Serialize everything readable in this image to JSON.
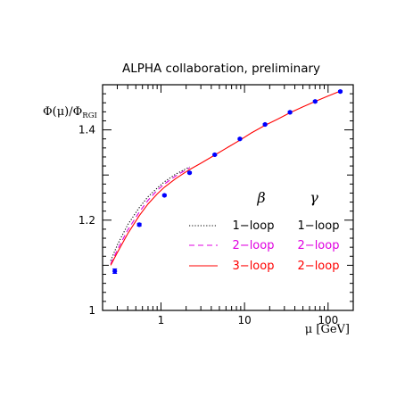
{
  "chart_data": {
    "type": "line",
    "title": "ALPHA collaboration, preliminary",
    "ylabel": "Φ(μ)/Φ_RGI",
    "xlabel": "μ [GeV]",
    "x_scale": "log",
    "xlim": [
      0.2,
      200
    ],
    "ylim": [
      1.0,
      1.5
    ],
    "x_ticks": [
      1,
      10,
      100
    ],
    "x_tick_labels": [
      "1",
      "10",
      "100"
    ],
    "y_ticks": [
      1.0,
      1.2,
      1.4
    ],
    "y_tick_labels": [
      "1",
      "1.2",
      "1.4"
    ],
    "legend": {
      "placement": "lower-right",
      "headers": [
        "β",
        "γ"
      ],
      "entries": [
        {
          "beta": "1−loop",
          "gamma": "1−loop",
          "color": "#000000",
          "style": "dotted"
        },
        {
          "beta": "2−loop",
          "gamma": "2−loop",
          "color": "#e000e0",
          "style": "dashed"
        },
        {
          "beta": "3−loop",
          "gamma": "2−loop",
          "color": "#ff0000",
          "style": "solid"
        }
      ]
    },
    "series": [
      {
        "style": "points",
        "color": "#0000ff",
        "x": [
          0.28,
          0.55,
          1.1,
          2.2,
          4.4,
          8.8,
          17.6,
          35,
          70,
          140
        ],
        "y": [
          1.087,
          1.19,
          1.255,
          1.305,
          1.345,
          1.38,
          1.412,
          1.439,
          1.463,
          1.485
        ],
        "yerr": [
          0.005,
          0.003,
          0.002,
          0.002,
          0.002,
          0.002,
          0.002,
          0.002,
          0.002,
          0.002
        ]
      },
      {
        "style": "dotted",
        "color": "#000000",
        "x": [
          0.25,
          0.3,
          0.4,
          0.55,
          0.7,
          0.9,
          1.1,
          1.5,
          2.2
        ],
        "y": [
          1.11,
          1.145,
          1.19,
          1.228,
          1.252,
          1.271,
          1.285,
          1.302,
          1.318
        ]
      },
      {
        "style": "dashed",
        "color": "#e000e0",
        "x": [
          0.25,
          0.3,
          0.4,
          0.55,
          0.7,
          0.9,
          1.1,
          1.5,
          2.2
        ],
        "y": [
          1.103,
          1.134,
          1.178,
          1.218,
          1.244,
          1.266,
          1.28,
          1.298,
          1.316
        ]
      },
      {
        "style": "solid",
        "color": "#ff0000",
        "x": [
          0.25,
          0.3,
          0.4,
          0.55,
          0.7,
          0.9,
          1.1,
          1.5,
          2.2,
          3,
          4.4,
          6,
          8.8,
          12,
          17.6,
          25,
          35,
          50,
          70,
          100,
          140
        ],
        "y": [
          1.1,
          1.128,
          1.17,
          1.21,
          1.236,
          1.258,
          1.273,
          1.292,
          1.312,
          1.326,
          1.344,
          1.359,
          1.377,
          1.393,
          1.41,
          1.424,
          1.438,
          1.451,
          1.463,
          1.475,
          1.486
        ]
      }
    ]
  }
}
